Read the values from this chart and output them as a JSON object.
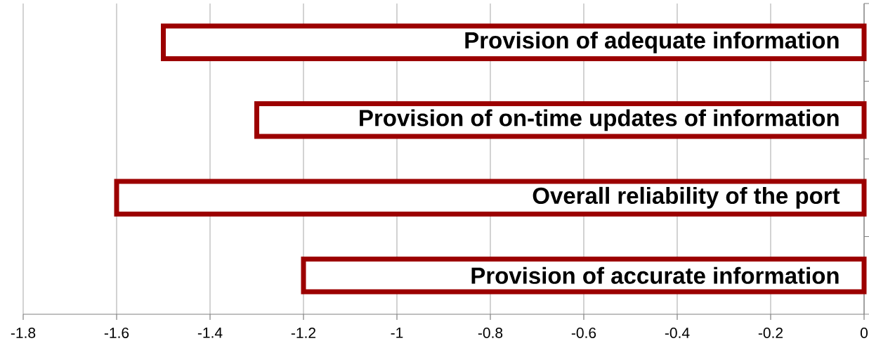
{
  "chart_data": {
    "type": "bar",
    "orientation": "horizontal",
    "categories": [
      "Provision of adequate information",
      "Provision of on-time updates of information",
      "Overall reliability of the port",
      "Provision of accurate information"
    ],
    "values": [
      -1.5,
      -1.3,
      -1.6,
      -1.2
    ],
    "color": "#9c0000",
    "xlim": [
      -1.8,
      0
    ],
    "xticks": [
      -1.8,
      -1.6,
      -1.4,
      -1.2,
      -1,
      -0.8,
      -0.6,
      -0.4,
      -0.2,
      0
    ],
    "grid": "x"
  }
}
